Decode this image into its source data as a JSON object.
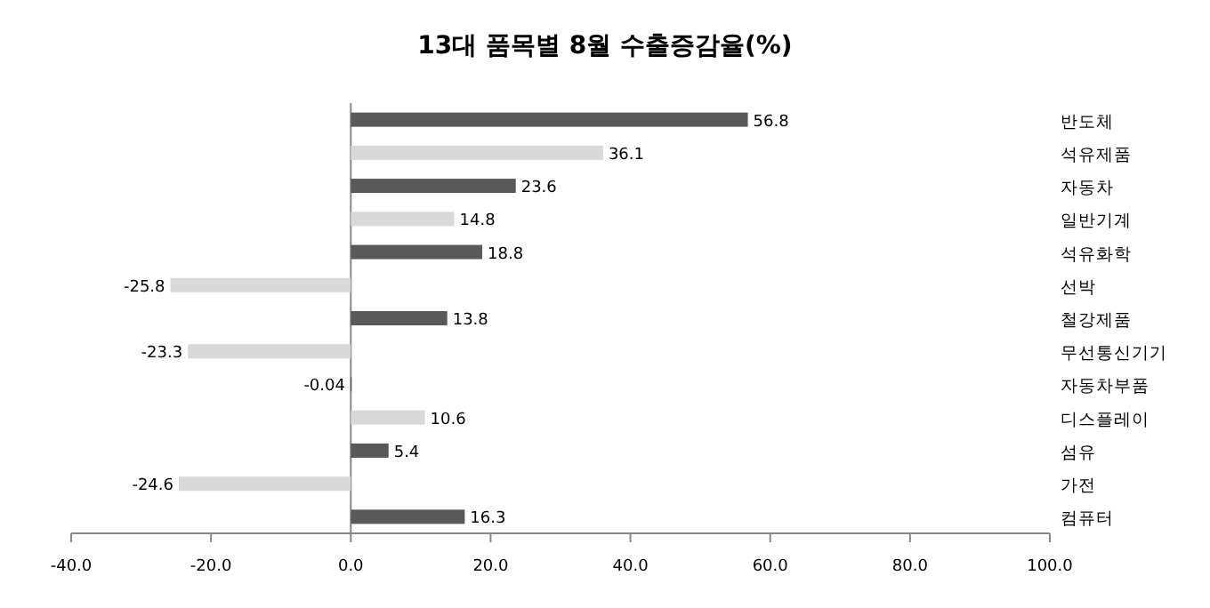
{
  "chart_data": {
    "type": "bar",
    "orientation": "horizontal",
    "title": "13대 품목별 8월 수출증감율(%)",
    "categories": [
      "반도체",
      "석유제품",
      "자동차",
      "일반기계",
      "석유화학",
      "선박",
      "철강제품",
      "무선통신기기",
      "자동차부품",
      "디스플레이",
      "섬유",
      "가전",
      "컴퓨터"
    ],
    "values": [
      56.8,
      36.1,
      23.6,
      14.8,
      18.8,
      -25.8,
      13.8,
      -23.3,
      -0.04,
      10.6,
      5.4,
      -24.6,
      16.3
    ],
    "colors": [
      "#595959",
      "#d9d9d9",
      "#595959",
      "#d9d9d9",
      "#595959",
      "#d9d9d9",
      "#595959",
      "#d9d9d9",
      "#595959",
      "#d9d9d9",
      "#595959",
      "#d9d9d9",
      "#595959"
    ],
    "xlim": [
      -40,
      100
    ],
    "xticks": [
      {
        "value": -40,
        "label": "-40.0"
      },
      {
        "value": -20,
        "label": "-20.0"
      },
      {
        "value": 0,
        "label": "0.0"
      },
      {
        "value": 20,
        "label": "20.0"
      },
      {
        "value": 40,
        "label": "40.0"
      },
      {
        "value": 60,
        "label": "60.0"
      },
      {
        "value": 80,
        "label": "80.0"
      },
      {
        "value": 100,
        "label": "100.0"
      }
    ],
    "data_labels": true
  }
}
